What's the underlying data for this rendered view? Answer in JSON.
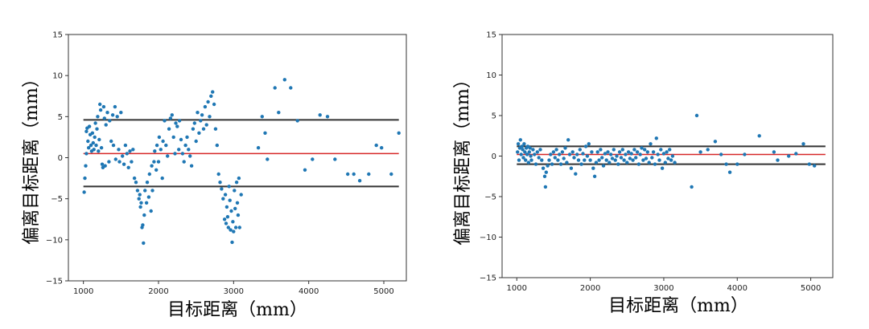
{
  "chart_data": [
    {
      "type": "scatter",
      "xlabel": "目标距离（mm）",
      "ylabel": "偏离目标距离（mm）",
      "xlim": [
        800,
        5300
      ],
      "ylim": [
        -15,
        15
      ],
      "xticks": [
        1000,
        2000,
        3000,
        4000,
        5000
      ],
      "yticks": [
        -15,
        -10,
        -5,
        0,
        5,
        10,
        15
      ],
      "grid": false,
      "point_color": "#1f77b4",
      "reference_lines": [
        {
          "y": 4.6,
          "color": "#333333"
        },
        {
          "y": 0.5,
          "color": "#d62728"
        },
        {
          "y": -3.5,
          "color": "#333333"
        }
      ],
      "points": [
        [
          1010,
          -4.2
        ],
        [
          1020,
          -2.5
        ],
        [
          1030,
          -1.0
        ],
        [
          1040,
          0.5
        ],
        [
          1040,
          3.2
        ],
        [
          1050,
          3.6
        ],
        [
          1060,
          2.0
        ],
        [
          1070,
          1.2
        ],
        [
          1080,
          3.8
        ],
        [
          1090,
          2.8
        ],
        [
          1100,
          1.5
        ],
        [
          1110,
          0.8
        ],
        [
          1120,
          3.0
        ],
        [
          1130,
          1.8
        ],
        [
          1140,
          1.0
        ],
        [
          1150,
          2.5
        ],
        [
          1160,
          4.2
        ],
        [
          1170,
          1.5
        ],
        [
          1180,
          3.5
        ],
        [
          1190,
          5.0
        ],
        [
          1200,
          0.8
        ],
        [
          1210,
          2.2
        ],
        [
          1220,
          6.5
        ],
        [
          1230,
          5.8
        ],
        [
          1240,
          1.2
        ],
        [
          1250,
          -0.8
        ],
        [
          1260,
          -1.2
        ],
        [
          1270,
          6.2
        ],
        [
          1280,
          4.8
        ],
        [
          1290,
          -1.0
        ],
        [
          1300,
          4.0
        ],
        [
          1320,
          5.5
        ],
        [
          1340,
          -0.5
        ],
        [
          1350,
          4.5
        ],
        [
          1370,
          2.0
        ],
        [
          1390,
          5.2
        ],
        [
          1400,
          1.5
        ],
        [
          1420,
          6.2
        ],
        [
          1430,
          -0.2
        ],
        [
          1450,
          5.0
        ],
        [
          1470,
          1.0
        ],
        [
          1480,
          -0.5
        ],
        [
          1500,
          5.5
        ],
        [
          1520,
          0.2
        ],
        [
          1540,
          -0.8
        ],
        [
          1560,
          1.5
        ],
        [
          1580,
          0.5
        ],
        [
          1600,
          -1.2
        ],
        [
          1620,
          0.8
        ],
        [
          1640,
          -0.5
        ],
        [
          1660,
          1.0
        ],
        [
          1680,
          -2.5
        ],
        [
          1700,
          -3.0
        ],
        [
          1720,
          -4.0
        ],
        [
          1740,
          -5.0
        ],
        [
          1750,
          -4.5
        ],
        [
          1760,
          -6.0
        ],
        [
          1770,
          -5.5
        ],
        [
          1780,
          -8.5
        ],
        [
          1790,
          -8.2
        ],
        [
          1800,
          -10.4
        ],
        [
          1810,
          -7.0
        ],
        [
          1820,
          -4.0
        ],
        [
          1840,
          -5.5
        ],
        [
          1850,
          -3.0
        ],
        [
          1870,
          -4.8
        ],
        [
          1880,
          -2.0
        ],
        [
          1900,
          -6.5
        ],
        [
          1910,
          -1.0
        ],
        [
          1920,
          -4.0
        ],
        [
          1940,
          -0.5
        ],
        [
          1950,
          0.8
        ],
        [
          1970,
          -1.5
        ],
        [
          1980,
          1.5
        ],
        [
          2000,
          -0.5
        ],
        [
          2010,
          2.5
        ],
        [
          2030,
          1.0
        ],
        [
          2050,
          -2.5
        ],
        [
          2060,
          2.0
        ],
        [
          2080,
          4.5
        ],
        [
          2100,
          1.5
        ],
        [
          2120,
          0.2
        ],
        [
          2140,
          3.5
        ],
        [
          2160,
          4.8
        ],
        [
          2180,
          5.2
        ],
        [
          2200,
          2.5
        ],
        [
          2220,
          0.5
        ],
        [
          2230,
          4.2
        ],
        [
          2250,
          3.8
        ],
        [
          2270,
          1.0
        ],
        [
          2280,
          4.5
        ],
        [
          2300,
          2.2
        ],
        [
          2320,
          0.5
        ],
        [
          2340,
          -0.5
        ],
        [
          2360,
          1.5
        ],
        [
          2380,
          2.5
        ],
        [
          2400,
          1.0
        ],
        [
          2420,
          0.2
        ],
        [
          2440,
          -1.0
        ],
        [
          2460,
          3.5
        ],
        [
          2480,
          4.2
        ],
        [
          2500,
          2.0
        ],
        [
          2520,
          5.5
        ],
        [
          2540,
          3.0
        ],
        [
          2560,
          4.5
        ],
        [
          2580,
          5.2
        ],
        [
          2600,
          3.5
        ],
        [
          2620,
          6.2
        ],
        [
          2640,
          4.0
        ],
        [
          2660,
          6.8
        ],
        [
          2680,
          5.0
        ],
        [
          2700,
          7.5
        ],
        [
          2720,
          8.0
        ],
        [
          2740,
          6.5
        ],
        [
          2760,
          3.5
        ],
        [
          2780,
          1.5
        ],
        [
          2800,
          -2.0
        ],
        [
          2820,
          -3.0
        ],
        [
          2840,
          -3.8
        ],
        [
          2860,
          -5.0
        ],
        [
          2880,
          -7.5
        ],
        [
          2890,
          -4.5
        ],
        [
          2900,
          -8.0
        ],
        [
          2910,
          -6.0
        ],
        [
          2920,
          -7.2
        ],
        [
          2930,
          -8.5
        ],
        [
          2940,
          -3.5
        ],
        [
          2950,
          -5.2
        ],
        [
          2960,
          -8.8
        ],
        [
          2970,
          -6.5
        ],
        [
          2980,
          -10.3
        ],
        [
          2990,
          -7.8
        ],
        [
          3000,
          -9.0
        ],
        [
          3010,
          -4.0
        ],
        [
          3020,
          -6.2
        ],
        [
          3030,
          -8.5
        ],
        [
          3040,
          -3.0
        ],
        [
          3050,
          -5.5
        ],
        [
          3060,
          -7.0
        ],
        [
          3070,
          -2.5
        ],
        [
          3080,
          -8.5
        ],
        [
          3100,
          -4.5
        ],
        [
          3330,
          1.2
        ],
        [
          3380,
          5.0
        ],
        [
          3420,
          3.0
        ],
        [
          3450,
          -0.2
        ],
        [
          3550,
          8.5
        ],
        [
          3600,
          5.5
        ],
        [
          3680,
          9.5
        ],
        [
          3760,
          8.5
        ],
        [
          3850,
          4.5
        ],
        [
          3950,
          -1.5
        ],
        [
          4050,
          -0.2
        ],
        [
          4150,
          5.2
        ],
        [
          4250,
          5.0
        ],
        [
          4350,
          -0.2
        ],
        [
          4520,
          -2.0
        ],
        [
          4600,
          -2.0
        ],
        [
          4680,
          -2.8
        ],
        [
          4800,
          -2.0
        ],
        [
          4900,
          1.5
        ],
        [
          4970,
          1.2
        ],
        [
          5100,
          -2.0
        ],
        [
          5200,
          3.0
        ]
      ]
    },
    {
      "type": "scatter",
      "xlabel": "目标距离（mm）",
      "ylabel": "偏离目标距离（mm）",
      "xlim": [
        800,
        5300
      ],
      "ylim": [
        -15,
        15
      ],
      "xticks": [
        1000,
        2000,
        3000,
        4000,
        5000
      ],
      "yticks": [
        -15,
        -10,
        -5,
        0,
        5,
        10,
        15
      ],
      "grid": false,
      "point_color": "#1f77b4",
      "reference_lines": [
        {
          "y": 1.2,
          "color": "#333333"
        },
        {
          "y": 0.2,
          "color": "#d62728"
        },
        {
          "y": -1.0,
          "color": "#333333"
        }
      ],
      "points": [
        [
          1010,
          0.5
        ],
        [
          1020,
          1.5
        ],
        [
          1030,
          -0.5
        ],
        [
          1040,
          1.0
        ],
        [
          1050,
          2.0
        ],
        [
          1060,
          0.2
        ],
        [
          1070,
          1.2
        ],
        [
          1080,
          0.8
        ],
        [
          1090,
          -0.2
        ],
        [
          1100,
          1.5
        ],
        [
          1110,
          0.5
        ],
        [
          1120,
          -0.5
        ],
        [
          1130,
          1.0
        ],
        [
          1140,
          0.2
        ],
        [
          1150,
          1.2
        ],
        [
          1160,
          -0.8
        ],
        [
          1170,
          0.5
        ],
        [
          1180,
          1.0
        ],
        [
          1190,
          0.0
        ],
        [
          1200,
          -0.5
        ],
        [
          1220,
          0.8
        ],
        [
          1240,
          0.2
        ],
        [
          1260,
          -1.0
        ],
        [
          1280,
          0.5
        ],
        [
          1300,
          -0.2
        ],
        [
          1320,
          0.8
        ],
        [
          1340,
          -0.5
        ],
        [
          1360,
          -1.5
        ],
        [
          1380,
          -2.5
        ],
        [
          1390,
          -3.8
        ],
        [
          1400,
          -2.0
        ],
        [
          1420,
          -1.2
        ],
        [
          1440,
          -0.5
        ],
        [
          1460,
          0.2
        ],
        [
          1480,
          -1.0
        ],
        [
          1500,
          0.5
        ],
        [
          1520,
          -0.2
        ],
        [
          1540,
          0.8
        ],
        [
          1560,
          -0.5
        ],
        [
          1580,
          0.2
        ],
        [
          1600,
          -1.0
        ],
        [
          1620,
          0.5
        ],
        [
          1640,
          -0.3
        ],
        [
          1660,
          1.0
        ],
        [
          1680,
          -0.8
        ],
        [
          1700,
          2.0
        ],
        [
          1720,
          0.2
        ],
        [
          1740,
          -1.5
        ],
        [
          1760,
          0.5
        ],
        [
          1780,
          -0.2
        ],
        [
          1800,
          -2.2
        ],
        [
          1820,
          0.2
        ],
        [
          1840,
          -0.5
        ],
        [
          1860,
          0.8
        ],
        [
          1880,
          -1.0
        ],
        [
          1900,
          0.3
        ],
        [
          1920,
          -0.5
        ],
        [
          1940,
          1.2
        ],
        [
          1960,
          0.0
        ],
        [
          1980,
          1.5
        ],
        [
          2000,
          -0.5
        ],
        [
          2020,
          0.5
        ],
        [
          2040,
          -1.5
        ],
        [
          2060,
          -2.5
        ],
        [
          2080,
          -0.8
        ],
        [
          2100,
          0.5
        ],
        [
          2120,
          -0.5
        ],
        [
          2140,
          0.8
        ],
        [
          2160,
          -0.2
        ],
        [
          2180,
          -1.2
        ],
        [
          2200,
          0.3
        ],
        [
          2220,
          -0.5
        ],
        [
          2240,
          0.5
        ],
        [
          2260,
          -0.8
        ],
        [
          2280,
          0.2
        ],
        [
          2300,
          -0.3
        ],
        [
          2320,
          0.8
        ],
        [
          2340,
          -0.5
        ],
        [
          2360,
          0.0
        ],
        [
          2380,
          -1.0
        ],
        [
          2400,
          0.5
        ],
        [
          2420,
          -0.2
        ],
        [
          2440,
          0.8
        ],
        [
          2460,
          -0.5
        ],
        [
          2480,
          0.2
        ],
        [
          2500,
          -0.8
        ],
        [
          2520,
          0.5
        ],
        [
          2540,
          -0.3
        ],
        [
          2560,
          0.3
        ],
        [
          2580,
          -0.5
        ],
        [
          2600,
          0.8
        ],
        [
          2620,
          -0.2
        ],
        [
          2640,
          0.5
        ],
        [
          2660,
          -1.0
        ],
        [
          2680,
          0.2
        ],
        [
          2700,
          1.0
        ],
        [
          2720,
          -0.5
        ],
        [
          2740,
          0.8
        ],
        [
          2760,
          -0.3
        ],
        [
          2780,
          0.5
        ],
        [
          2800,
          -0.8
        ],
        [
          2820,
          1.5
        ],
        [
          2840,
          -0.2
        ],
        [
          2860,
          0.5
        ],
        [
          2880,
          -1.0
        ],
        [
          2900,
          2.2
        ],
        [
          2920,
          0.2
        ],
        [
          2940,
          -0.5
        ],
        [
          2960,
          0.8
        ],
        [
          2980,
          -1.5
        ],
        [
          3000,
          0.3
        ],
        [
          3020,
          -0.8
        ],
        [
          3040,
          0.5
        ],
        [
          3060,
          -0.3
        ],
        [
          3080,
          0.8
        ],
        [
          3100,
          -0.5
        ],
        [
          3120,
          0.0
        ],
        [
          3150,
          -0.8
        ],
        [
          3380,
          -3.8
        ],
        [
          3450,
          5.0
        ],
        [
          3500,
          0.5
        ],
        [
          3600,
          0.8
        ],
        [
          3700,
          1.8
        ],
        [
          3780,
          0.2
        ],
        [
          3850,
          -1.0
        ],
        [
          3900,
          -2.0
        ],
        [
          4000,
          -1.0
        ],
        [
          4100,
          0.2
        ],
        [
          4300,
          2.5
        ],
        [
          4500,
          0.5
        ],
        [
          4550,
          -0.5
        ],
        [
          4700,
          0.0
        ],
        [
          4800,
          0.3
        ],
        [
          4900,
          1.5
        ],
        [
          4980,
          -1.0
        ],
        [
          5050,
          -1.2
        ]
      ]
    }
  ]
}
